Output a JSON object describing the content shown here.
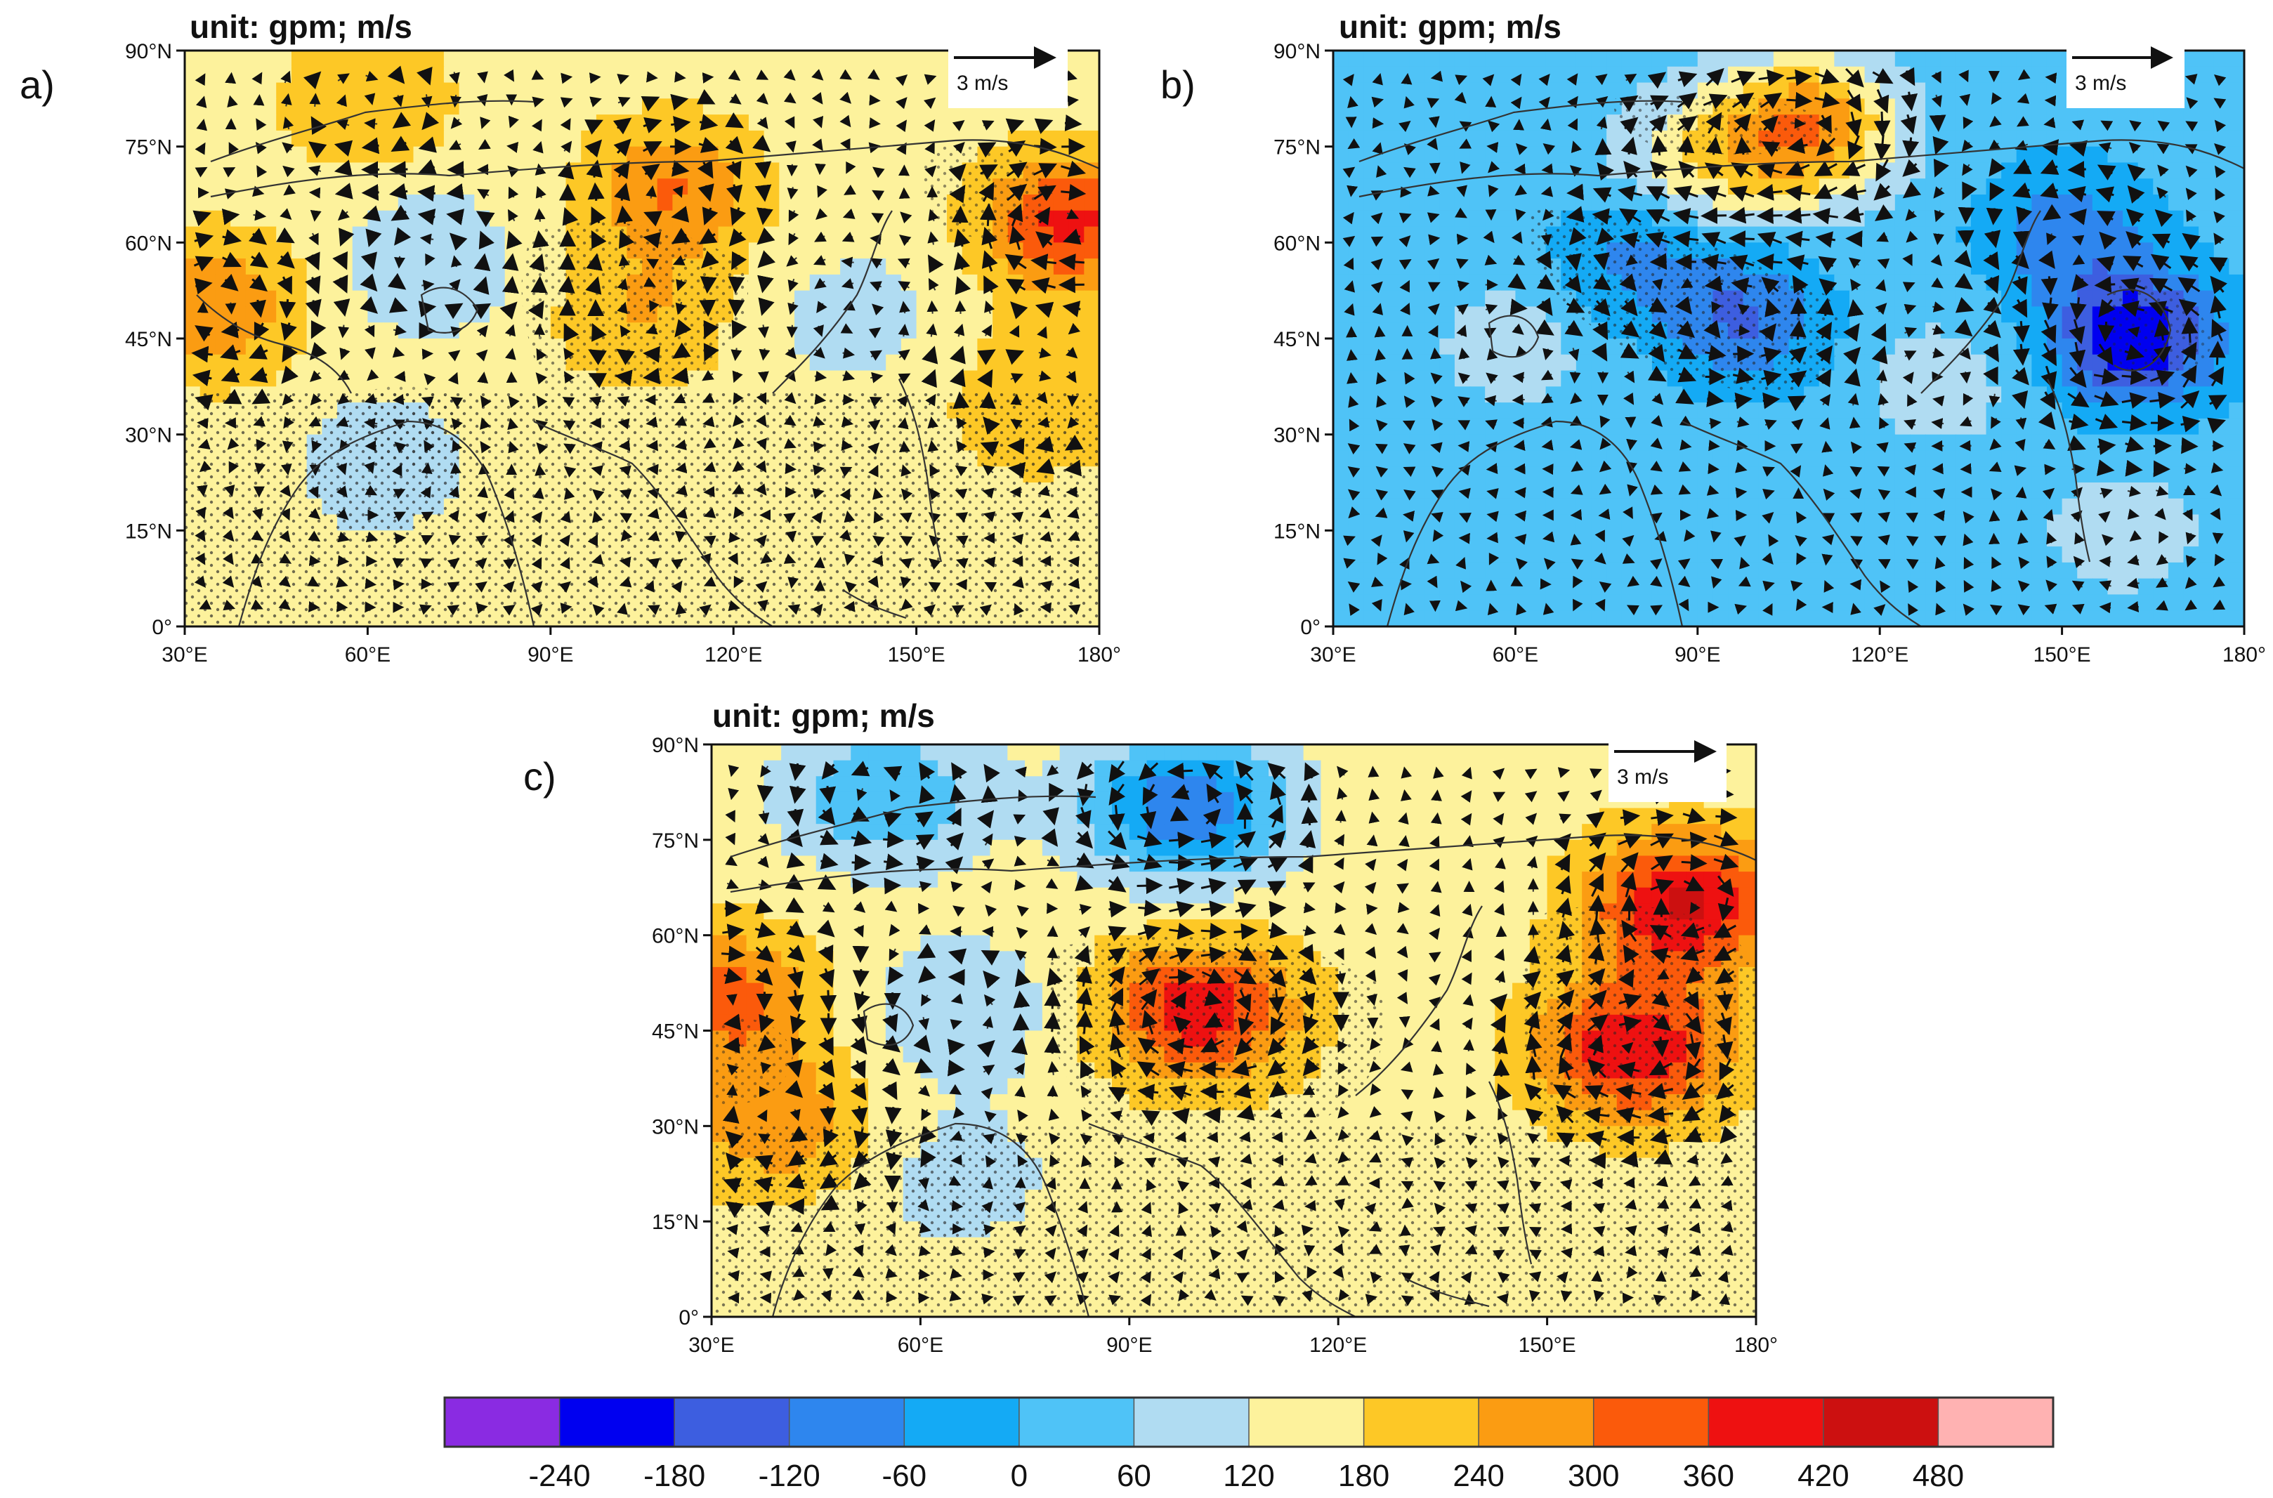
{
  "chart_data": [
    {
      "panel": "a)",
      "type": "contour_map_with_vectors",
      "title": "unit: gpm; m/s",
      "reference_vector": "3 m/s",
      "xlabel": "",
      "ylabel": "",
      "xlim": [
        30,
        180
      ],
      "ylim": [
        0,
        90
      ],
      "x_ticks": [
        30,
        60,
        90,
        120,
        150,
        180
      ],
      "x_tick_labels": [
        "30°E",
        "60°E",
        "90°E",
        "120°E",
        "150°E",
        "180°"
      ],
      "y_ticks": [
        0,
        15,
        30,
        45,
        60,
        75,
        90
      ],
      "y_tick_labels": [
        "0°",
        "15°N",
        "30°N",
        "45°N",
        "60°N",
        "75°N",
        "90°N"
      ],
      "background_value": 150,
      "anomalies": [
        {
          "lon": 70,
          "lat": 57,
          "value": 60
        },
        {
          "lon": 62,
          "lat": 25,
          "value": 80
        },
        {
          "lon": 140,
          "lat": 48,
          "value": 90
        },
        {
          "lon": 175,
          "lat": 63,
          "value": 380
        },
        {
          "lon": 110,
          "lat": 68,
          "value": 300
        },
        {
          "lon": 35,
          "lat": 50,
          "value": 300
        },
        {
          "lon": 105,
          "lat": 48,
          "value": 240
        },
        {
          "lon": 170,
          "lat": 35,
          "value": 240
        },
        {
          "lon": 60,
          "lat": 82,
          "value": 240
        }
      ]
    },
    {
      "panel": "b)",
      "type": "contour_map_with_vectors",
      "title": "unit: gpm; m/s",
      "reference_vector": "3 m/s",
      "xlabel": "",
      "ylabel": "",
      "xlim": [
        30,
        180
      ],
      "ylim": [
        0,
        90
      ],
      "x_ticks": [
        30,
        60,
        90,
        120,
        150,
        180
      ],
      "x_tick_labels": [
        "30°E",
        "60°E",
        "90°E",
        "120°E",
        "150°E",
        "180°"
      ],
      "y_ticks": [
        0,
        15,
        30,
        45,
        60,
        75,
        90
      ],
      "y_tick_labels": [
        "0°",
        "15°N",
        "30°N",
        "45°N",
        "60°N",
        "75°N",
        "90°N"
      ],
      "background_value": 30,
      "anomalies": [
        {
          "lon": 162,
          "lat": 45,
          "value": -230
        },
        {
          "lon": 98,
          "lat": 48,
          "value": -120
        },
        {
          "lon": 80,
          "lat": 58,
          "value": -80
        },
        {
          "lon": 150,
          "lat": 62,
          "value": -90
        },
        {
          "lon": 60,
          "lat": 44,
          "value": 90
        },
        {
          "lon": 108,
          "lat": 78,
          "value": 300
        },
        {
          "lon": 90,
          "lat": 72,
          "value": 170
        },
        {
          "lon": 160,
          "lat": 15,
          "value": 90
        },
        {
          "lon": 130,
          "lat": 38,
          "value": 90
        }
      ]
    },
    {
      "panel": "c)",
      "type": "contour_map_with_vectors",
      "title": "unit: gpm; m/s",
      "reference_vector": "3 m/s",
      "xlabel": "",
      "ylabel": "",
      "xlim": [
        30,
        180
      ],
      "ylim": [
        0,
        90
      ],
      "x_ticks": [
        30,
        60,
        90,
        120,
        150,
        180
      ],
      "x_tick_labels": [
        "30°E",
        "60°E",
        "90°E",
        "120°E",
        "150°E",
        "180°"
      ],
      "y_ticks": [
        0,
        15,
        30,
        45,
        60,
        75,
        90
      ],
      "y_tick_labels": [
        "0°",
        "15°N",
        "30°N",
        "45°N",
        "60°N",
        "75°N",
        "90°N"
      ],
      "background_value": 150,
      "anomalies": [
        {
          "lon": 100,
          "lat": 48,
          "value": 400
        },
        {
          "lon": 162,
          "lat": 42,
          "value": 420
        },
        {
          "lon": 170,
          "lat": 65,
          "value": 430
        },
        {
          "lon": 98,
          "lat": 80,
          "value": -110
        },
        {
          "lon": 55,
          "lat": 82,
          "value": 0
        },
        {
          "lon": 65,
          "lat": 48,
          "value": 60
        },
        {
          "lon": 65,
          "lat": 22,
          "value": 90
        },
        {
          "lon": 32,
          "lat": 50,
          "value": 330
        },
        {
          "lon": 40,
          "lat": 30,
          "value": 280
        }
      ]
    }
  ],
  "colorbar": {
    "colors": [
      "#8a2be2",
      "#0000f0",
      "#3d5ee0",
      "#2e86ee",
      "#14aaf5",
      "#4fc3f7",
      "#b0dcf2",
      "#fdf29c",
      "#fdc826",
      "#fb9c12",
      "#fb5a0b",
      "#ee1111",
      "#cc1010",
      "#ffb2b2"
    ],
    "labels": [
      "-240",
      "-180",
      "-120",
      "-60",
      "0",
      "60",
      "120",
      "180",
      "240",
      "300",
      "360",
      "420",
      "480"
    ]
  }
}
